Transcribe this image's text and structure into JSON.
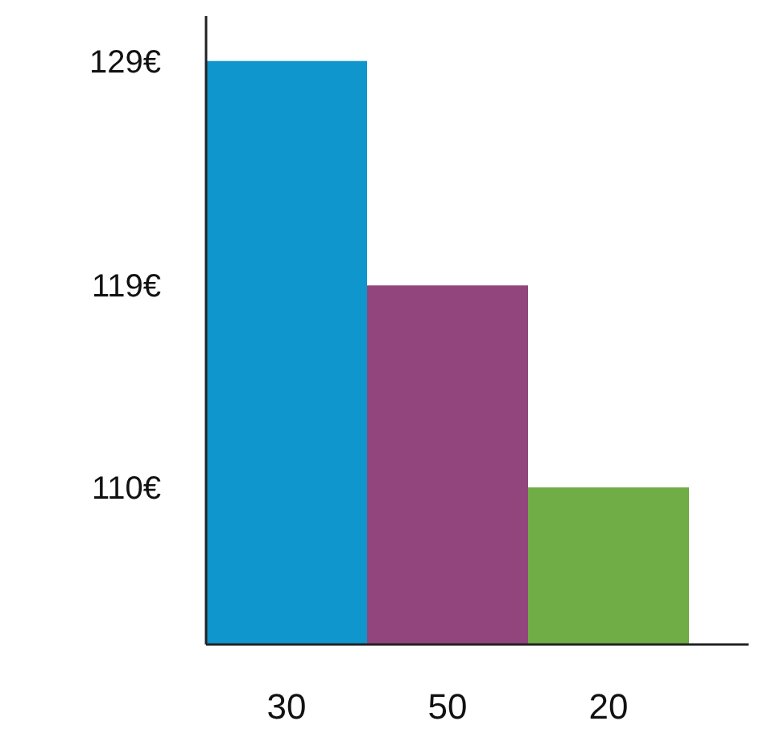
{
  "chart_data": {
    "type": "bar",
    "categories": [
      "30",
      "50",
      "20"
    ],
    "values": [
      129,
      119,
      110
    ],
    "colors": [
      "#0f96cc",
      "#92457d",
      "#70ad47"
    ],
    "ylim": [
      103,
      131
    ],
    "yticks": [
      {
        "value": 110,
        "label": "110€"
      },
      {
        "value": 119,
        "label": "119€"
      },
      {
        "value": 129,
        "label": "129€"
      }
    ]
  }
}
